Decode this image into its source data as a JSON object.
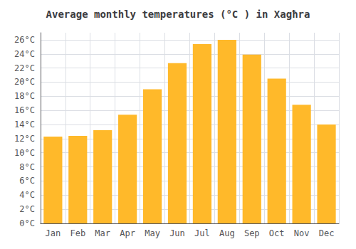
{
  "chart_data": {
    "type": "bar",
    "title": "Average monthly temperatures (°C ) in Xagħra",
    "categories": [
      "Jan",
      "Feb",
      "Mar",
      "Apr",
      "May",
      "Jun",
      "Jul",
      "Aug",
      "Sep",
      "Oct",
      "Nov",
      "Dec"
    ],
    "values": [
      12.3,
      12.4,
      13.2,
      15.4,
      19.0,
      22.7,
      25.4,
      26.0,
      23.9,
      20.5,
      16.8,
      14.0
    ],
    "color": "#FFB92A",
    "ylim": [
      0,
      27
    ],
    "yticks": [
      {
        "value": 0,
        "label": "0°C"
      },
      {
        "value": 2,
        "label": "2°C"
      },
      {
        "value": 4,
        "label": "4°C"
      },
      {
        "value": 6,
        "label": "6°C"
      },
      {
        "value": 8,
        "label": "8°C"
      },
      {
        "value": 10,
        "label": "10°C"
      },
      {
        "value": 12,
        "label": "12°C"
      },
      {
        "value": 14,
        "label": "14°C"
      },
      {
        "value": 16,
        "label": "16°C"
      },
      {
        "value": 18,
        "label": "18°C"
      },
      {
        "value": 20,
        "label": "20°C"
      },
      {
        "value": 22,
        "label": "22°C"
      },
      {
        "value": 24,
        "label": "24°C"
      },
      {
        "value": 26,
        "label": "26°C"
      }
    ],
    "grid": true
  }
}
